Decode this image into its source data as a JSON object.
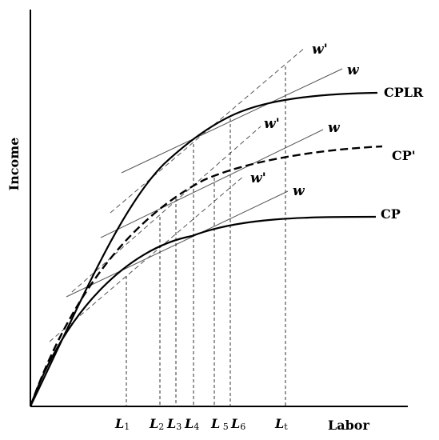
{
  "axes": {
    "x_title": "Labor",
    "y_title": "Income"
  },
  "curves": {
    "cplr": {
      "label": "CPLR"
    },
    "cp_prime": {
      "label": "CP'"
    },
    "cp": {
      "label": "CP"
    }
  },
  "tangent_labels": {
    "w_prime_top": "w'",
    "w_top": "w",
    "w_prime_mid": "w'",
    "w_mid": "w",
    "w_prime_low": "w'",
    "w_low": "w"
  },
  "x_ticks": [
    {
      "main": "L",
      "sub": "1"
    },
    {
      "main": "L",
      "sub": "2"
    },
    {
      "main": "L",
      "sub": "3"
    },
    {
      "main": "L",
      "sub": "4"
    },
    {
      "main": "L",
      "sub": " 5"
    },
    {
      "main": "L",
      "sub": "6"
    },
    {
      "main": "L",
      "sub": "t"
    }
  ]
}
